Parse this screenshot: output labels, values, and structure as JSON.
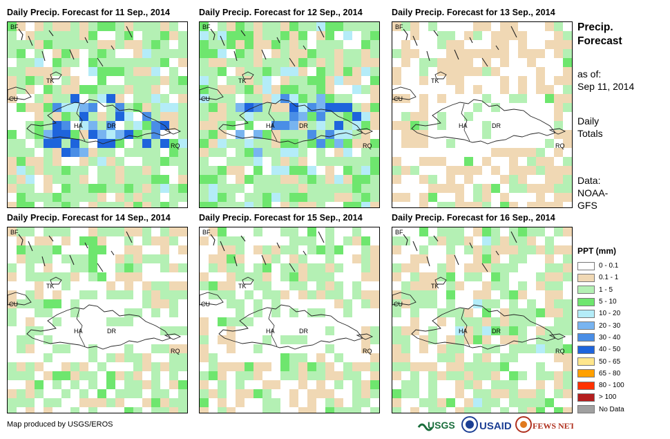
{
  "panels": [
    {
      "title": "Daily Precip. Forecast for 11 Sep., 2014",
      "seed": 11,
      "profile": "wet"
    },
    {
      "title": "Daily Precip. Forecast for 12 Sep., 2014",
      "seed": 12,
      "profile": "veryWet"
    },
    {
      "title": "Daily Precip. Forecast for 13 Sep., 2014",
      "seed": 13,
      "profile": "dry"
    },
    {
      "title": "Daily Precip. Forecast for 14 Sep., 2014",
      "seed": 14,
      "profile": "mixed"
    },
    {
      "title": "Daily Precip. Forecast for 15 Sep., 2014",
      "seed": 15,
      "profile": "mixed"
    },
    {
      "title": "Daily Precip. Forecast for 16 Sep., 2014",
      "seed": 16,
      "profile": "mixedWet"
    }
  ],
  "map_labels": {
    "bf": "BF",
    "tk": "TK",
    "cu": "CU",
    "ha": "HA",
    "dr": "DR",
    "rq": "RQ"
  },
  "sidebar": {
    "title_line1": "Precip.",
    "title_line2": "Forecast",
    "asof_line1": "as of:",
    "asof_line2": "Sep 11, 2014",
    "totals_line1": "Daily",
    "totals_line2": "Totals",
    "data_line1": "Data:",
    "data_line2": "NOAA-",
    "data_line3": "GFS"
  },
  "legend": {
    "title": "PPT (mm)",
    "items": [
      {
        "label": "0 - 0.1",
        "color": "#ffffff"
      },
      {
        "label": "0.1 - 1",
        "color": "#f0d8b4"
      },
      {
        "label": "1 - 5",
        "color": "#b4f0b4"
      },
      {
        "label": "5 - 10",
        "color": "#6ee66e"
      },
      {
        "label": "10 - 20",
        "color": "#b4ecf8"
      },
      {
        "label": "20 - 30",
        "color": "#78b4f0"
      },
      {
        "label": "30 - 40",
        "color": "#4a8ee6"
      },
      {
        "label": "40 - 50",
        "color": "#1e64dc"
      },
      {
        "label": "50 - 65",
        "color": "#ffe68c"
      },
      {
        "label": "65 - 80",
        "color": "#ffa000"
      },
      {
        "label": "80 - 100",
        "color": "#ff3200"
      },
      {
        "label": "> 100",
        "color": "#b41e1e"
      },
      {
        "label": "No Data",
        "color": "#a0a0a0"
      }
    ]
  },
  "credit": "Map produced by USGS/EROS",
  "logos": {
    "usgs": "USGS",
    "usaid": "USAID",
    "fews": "FEWS NET"
  }
}
